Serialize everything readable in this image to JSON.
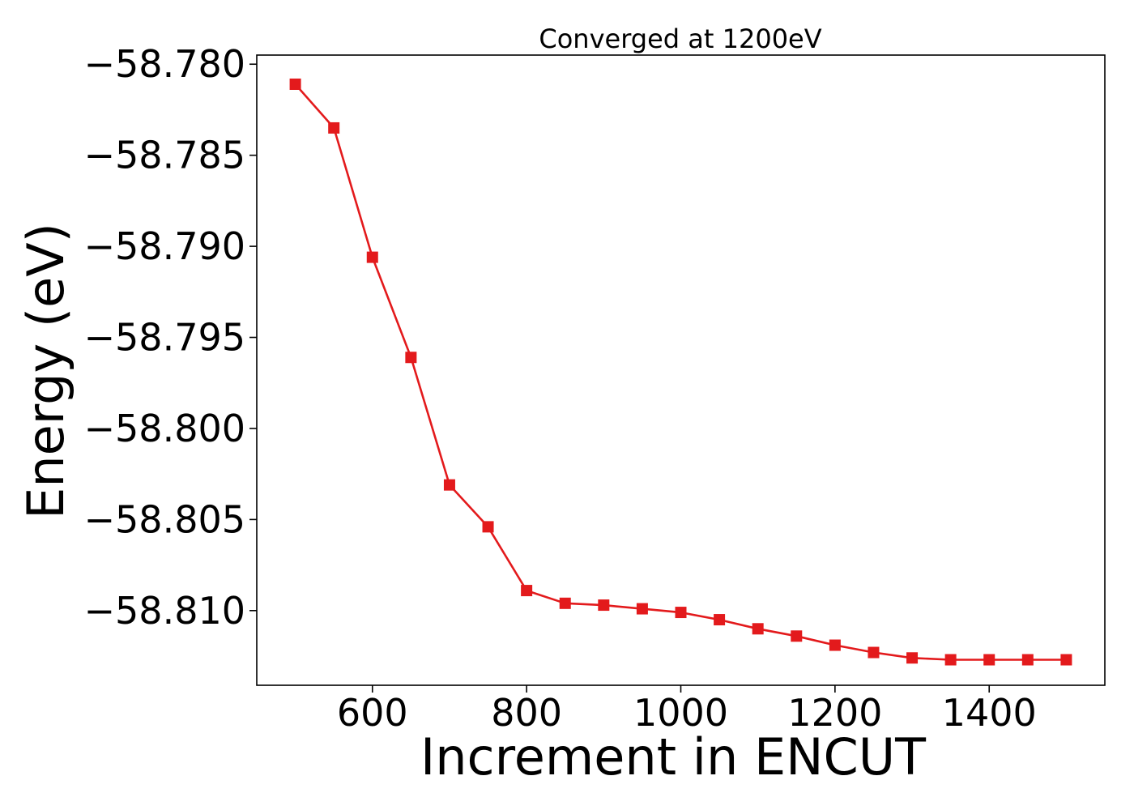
{
  "chart_data": {
    "type": "line",
    "title": "Converged at 1200eV",
    "xlabel": "Increment in ENCUT",
    "ylabel": "Energy (eV)",
    "xlim": [
      450,
      1550
    ],
    "ylim": [
      -58.8141,
      -58.7795
    ],
    "x_ticks": [
      600,
      800,
      1000,
      1200,
      1400
    ],
    "x_tick_labels": [
      "600",
      "800",
      "1000",
      "1200",
      "1400"
    ],
    "y_ticks": [
      -58.78,
      -58.785,
      -58.79,
      -58.795,
      -58.8,
      -58.805,
      -58.81
    ],
    "y_tick_labels": [
      "−58.780",
      "−58.785",
      "−58.790",
      "−58.795",
      "−58.800",
      "−58.805",
      "−58.810"
    ],
    "grid": false,
    "series": [
      {
        "color": "#e31a1c",
        "marker": "square",
        "x": [
          500,
          550,
          600,
          650,
          700,
          750,
          800,
          850,
          900,
          950,
          1000,
          1050,
          1100,
          1150,
          1200,
          1250,
          1300,
          1350,
          1400,
          1450,
          1500
        ],
        "y": [
          -58.7811,
          -58.7835,
          -58.7906,
          -58.7961,
          -58.8031,
          -58.8054,
          -58.8089,
          -58.8096,
          -58.8097,
          -58.8099,
          -58.8101,
          -58.8105,
          -58.811,
          -58.8114,
          -58.8119,
          -58.8123,
          -58.8126,
          -58.8127,
          -58.8127,
          -58.8127,
          -58.8127
        ]
      }
    ]
  }
}
